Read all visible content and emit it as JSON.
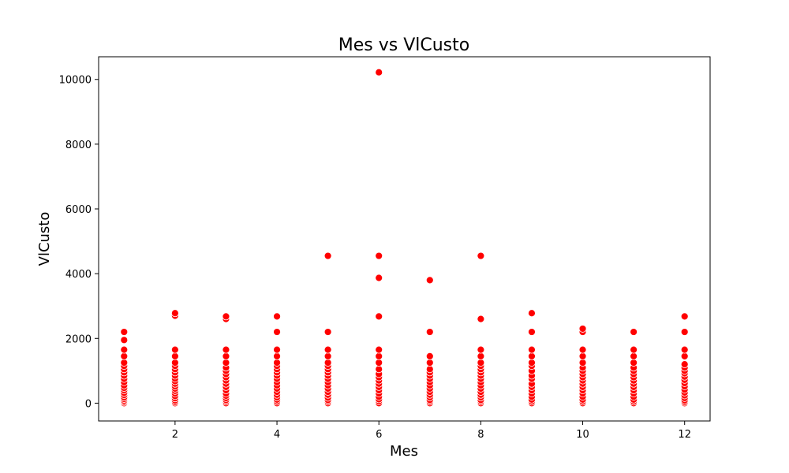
{
  "chart_data": {
    "type": "scatter",
    "title": "Mes vs VlCusto",
    "xlabel": "Mes",
    "ylabel": "VlCusto",
    "xlim": [
      0.5,
      12.5
    ],
    "ylim": [
      -550,
      10700
    ],
    "xticks": [
      2,
      4,
      6,
      8,
      10,
      12
    ],
    "yticks": [
      0,
      2000,
      4000,
      6000,
      8000,
      10000
    ],
    "grid": false,
    "marker_color": "#ff0000",
    "marker_edge_color": "#ffffff",
    "series": [
      {
        "points": [
          [
            1,
            0
          ],
          [
            1,
            40
          ],
          [
            1,
            80
          ],
          [
            1,
            130
          ],
          [
            1,
            180
          ],
          [
            1,
            250
          ],
          [
            1,
            320
          ],
          [
            1,
            400
          ],
          [
            1,
            470
          ],
          [
            1,
            550
          ],
          [
            1,
            650
          ],
          [
            1,
            750
          ],
          [
            1,
            850
          ],
          [
            1,
            950
          ],
          [
            1,
            1050
          ],
          [
            1,
            1150
          ],
          [
            1,
            1250
          ],
          [
            1,
            1450
          ],
          [
            1,
            1650
          ],
          [
            1,
            1950
          ],
          [
            1,
            2200
          ],
          [
            2,
            0
          ],
          [
            2,
            40
          ],
          [
            2,
            90
          ],
          [
            2,
            150
          ],
          [
            2,
            220
          ],
          [
            2,
            300
          ],
          [
            2,
            380
          ],
          [
            2,
            450
          ],
          [
            2,
            520
          ],
          [
            2,
            600
          ],
          [
            2,
            680
          ],
          [
            2,
            760
          ],
          [
            2,
            850
          ],
          [
            2,
            950
          ],
          [
            2,
            1050
          ],
          [
            2,
            1150
          ],
          [
            2,
            1250
          ],
          [
            2,
            1450
          ],
          [
            2,
            1650
          ],
          [
            2,
            2700
          ],
          [
            2,
            2780
          ],
          [
            3,
            0
          ],
          [
            3,
            50
          ],
          [
            3,
            100
          ],
          [
            3,
            160
          ],
          [
            3,
            230
          ],
          [
            3,
            300
          ],
          [
            3,
            400
          ],
          [
            3,
            500
          ],
          [
            3,
            600
          ],
          [
            3,
            700
          ],
          [
            3,
            800
          ],
          [
            3,
            900
          ],
          [
            3,
            1000
          ],
          [
            3,
            1100
          ],
          [
            3,
            1250
          ],
          [
            3,
            1450
          ],
          [
            3,
            1650
          ],
          [
            3,
            2600
          ],
          [
            3,
            2680
          ],
          [
            4,
            0
          ],
          [
            4,
            50
          ],
          [
            4,
            110
          ],
          [
            4,
            180
          ],
          [
            4,
            260
          ],
          [
            4,
            350
          ],
          [
            4,
            450
          ],
          [
            4,
            550
          ],
          [
            4,
            650
          ],
          [
            4,
            750
          ],
          [
            4,
            850
          ],
          [
            4,
            950
          ],
          [
            4,
            1050
          ],
          [
            4,
            1150
          ],
          [
            4,
            1250
          ],
          [
            4,
            1450
          ],
          [
            4,
            1650
          ],
          [
            4,
            2200
          ],
          [
            4,
            2680
          ],
          [
            5,
            0
          ],
          [
            5,
            50
          ],
          [
            5,
            100
          ],
          [
            5,
            170
          ],
          [
            5,
            260
          ],
          [
            5,
            350
          ],
          [
            5,
            450
          ],
          [
            5,
            550
          ],
          [
            5,
            650
          ],
          [
            5,
            750
          ],
          [
            5,
            850
          ],
          [
            5,
            950
          ],
          [
            5,
            1050
          ],
          [
            5,
            1150
          ],
          [
            5,
            1250
          ],
          [
            5,
            1450
          ],
          [
            5,
            1650
          ],
          [
            5,
            2200
          ],
          [
            5,
            4550
          ],
          [
            6,
            0
          ],
          [
            6,
            60
          ],
          [
            6,
            120
          ],
          [
            6,
            200
          ],
          [
            6,
            300
          ],
          [
            6,
            400
          ],
          [
            6,
            500
          ],
          [
            6,
            600
          ],
          [
            6,
            700
          ],
          [
            6,
            800
          ],
          [
            6,
            900
          ],
          [
            6,
            1050
          ],
          [
            6,
            1250
          ],
          [
            6,
            1450
          ],
          [
            6,
            1650
          ],
          [
            6,
            2680
          ],
          [
            6,
            3870
          ],
          [
            6,
            4550
          ],
          [
            6,
            10220
          ],
          [
            7,
            0
          ],
          [
            7,
            50
          ],
          [
            7,
            100
          ],
          [
            7,
            180
          ],
          [
            7,
            260
          ],
          [
            7,
            350
          ],
          [
            7,
            450
          ],
          [
            7,
            550
          ],
          [
            7,
            650
          ],
          [
            7,
            750
          ],
          [
            7,
            850
          ],
          [
            7,
            950
          ],
          [
            7,
            1050
          ],
          [
            7,
            1250
          ],
          [
            7,
            1450
          ],
          [
            7,
            2200
          ],
          [
            7,
            3800
          ],
          [
            8,
            0
          ],
          [
            8,
            50
          ],
          [
            8,
            100
          ],
          [
            8,
            180
          ],
          [
            8,
            260
          ],
          [
            8,
            350
          ],
          [
            8,
            450
          ],
          [
            8,
            550
          ],
          [
            8,
            650
          ],
          [
            8,
            750
          ],
          [
            8,
            850
          ],
          [
            8,
            950
          ],
          [
            8,
            1050
          ],
          [
            8,
            1150
          ],
          [
            8,
            1250
          ],
          [
            8,
            1450
          ],
          [
            8,
            1650
          ],
          [
            8,
            2600
          ],
          [
            8,
            4550
          ],
          [
            9,
            0
          ],
          [
            9,
            50
          ],
          [
            9,
            110
          ],
          [
            9,
            200
          ],
          [
            9,
            300
          ],
          [
            9,
            400
          ],
          [
            9,
            500
          ],
          [
            9,
            600
          ],
          [
            9,
            750
          ],
          [
            9,
            850
          ],
          [
            9,
            1000
          ],
          [
            9,
            1150
          ],
          [
            9,
            1250
          ],
          [
            9,
            1450
          ],
          [
            9,
            1650
          ],
          [
            9,
            2200
          ],
          [
            9,
            2780
          ],
          [
            10,
            0
          ],
          [
            10,
            50
          ],
          [
            10,
            110
          ],
          [
            10,
            200
          ],
          [
            10,
            300
          ],
          [
            10,
            400
          ],
          [
            10,
            500
          ],
          [
            10,
            600
          ],
          [
            10,
            700
          ],
          [
            10,
            800
          ],
          [
            10,
            900
          ],
          [
            10,
            1000
          ],
          [
            10,
            1100
          ],
          [
            10,
            1250
          ],
          [
            10,
            1450
          ],
          [
            10,
            1650
          ],
          [
            10,
            2200
          ],
          [
            10,
            2300
          ],
          [
            11,
            0
          ],
          [
            11,
            50
          ],
          [
            11,
            110
          ],
          [
            11,
            200
          ],
          [
            11,
            300
          ],
          [
            11,
            400
          ],
          [
            11,
            500
          ],
          [
            11,
            600
          ],
          [
            11,
            700
          ],
          [
            11,
            800
          ],
          [
            11,
            900
          ],
          [
            11,
            1000
          ],
          [
            11,
            1100
          ],
          [
            11,
            1250
          ],
          [
            11,
            1450
          ],
          [
            11,
            1650
          ],
          [
            11,
            2200
          ],
          [
            12,
            0
          ],
          [
            12,
            40
          ],
          [
            12,
            90
          ],
          [
            12,
            160
          ],
          [
            12,
            240
          ],
          [
            12,
            330
          ],
          [
            12,
            420
          ],
          [
            12,
            520
          ],
          [
            12,
            620
          ],
          [
            12,
            720
          ],
          [
            12,
            820
          ],
          [
            12,
            920
          ],
          [
            12,
            1000
          ],
          [
            12,
            1100
          ],
          [
            12,
            1200
          ],
          [
            12,
            1450
          ],
          [
            12,
            1650
          ],
          [
            12,
            2200
          ],
          [
            12,
            2680
          ]
        ]
      }
    ]
  }
}
